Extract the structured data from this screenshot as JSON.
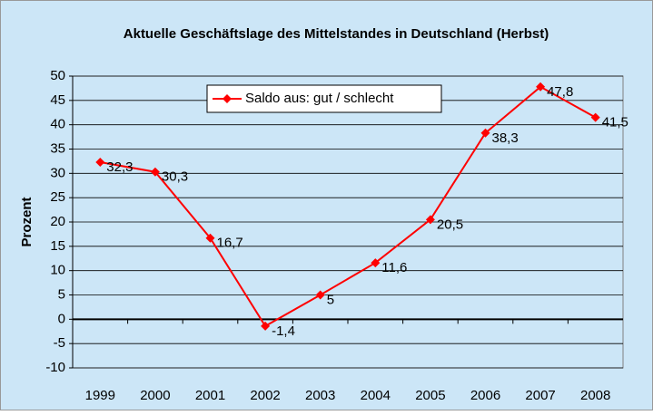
{
  "chart_data": {
    "type": "line",
    "title": "Aktuelle Geschäftslage des Mittelstandes in Deutschland (Herbst)",
    "y_label": "Prozent",
    "categories": [
      "1999",
      "2000",
      "2001",
      "2002",
      "2003",
      "2004",
      "2005",
      "2006",
      "2007",
      "2008"
    ],
    "series": [
      {
        "name": "Saldo aus: gut / schlecht",
        "color": "#ff0000",
        "values": [
          32.3,
          30.3,
          16.7,
          -1.4,
          5,
          11.6,
          20.5,
          38.3,
          47.8,
          41.5
        ],
        "value_labels": [
          "32,3",
          "30,3",
          "16,7",
          "-1,4",
          "5",
          "11,6",
          "20,5",
          "38,3",
          "47,8",
          "41,5"
        ]
      }
    ],
    "ylim": [
      -10,
      50
    ],
    "yticks": [
      -10,
      -5,
      0,
      5,
      10,
      15,
      20,
      25,
      30,
      35,
      40,
      45,
      50
    ],
    "grid": true,
    "legend_position": "top"
  }
}
